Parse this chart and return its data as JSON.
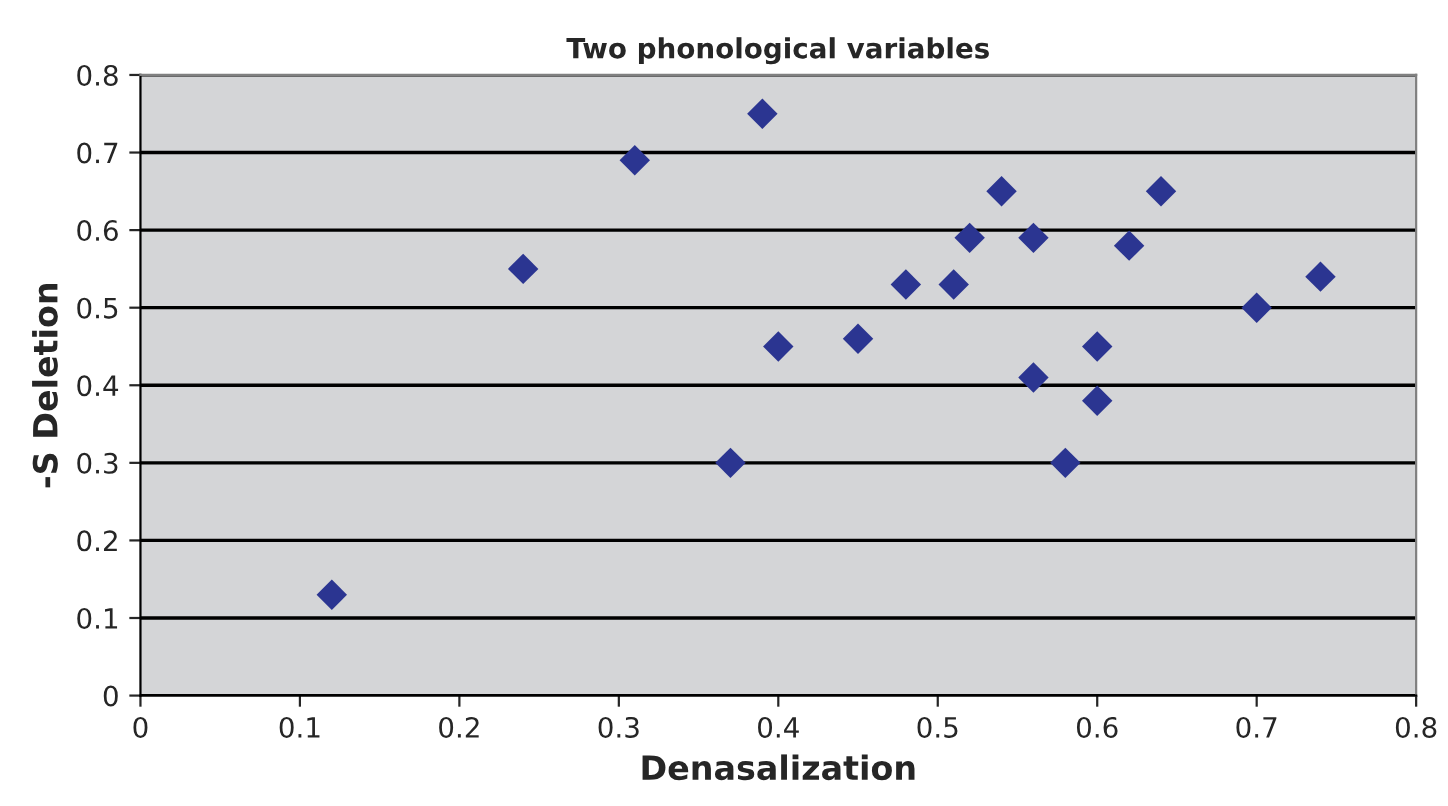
{
  "chart_data": {
    "type": "scatter",
    "title": "Two phonological variables",
    "xlabel": "Denasalization",
    "ylabel": "-S Deletion",
    "x": [
      0.12,
      0.24,
      0.31,
      0.39,
      0.37,
      0.4,
      0.45,
      0.48,
      0.51,
      0.52,
      0.54,
      0.56,
      0.56,
      0.58,
      0.6,
      0.6,
      0.62,
      0.64,
      0.7,
      0.74
    ],
    "series": [
      {
        "color": "#2b3591",
        "values": [
          0.13,
          0.55,
          0.69,
          0.75,
          0.3,
          0.45,
          0.46,
          0.53,
          0.53,
          0.59,
          0.65,
          0.59,
          0.41,
          0.3,
          0.45,
          0.38,
          0.58,
          0.65,
          0.5,
          0.54
        ]
      }
    ],
    "xlim": [
      0,
      0.8
    ],
    "xticks": [
      0,
      0.1,
      0.2,
      0.3,
      0.4,
      0.5,
      0.6,
      0.7,
      0.8
    ],
    "ylim": [
      0,
      0.8
    ],
    "yticks": [
      0,
      0.1,
      0.2,
      0.3,
      0.4,
      0.5,
      0.6,
      0.7,
      0.8
    ],
    "grid": "y",
    "marker": "diamond"
  }
}
